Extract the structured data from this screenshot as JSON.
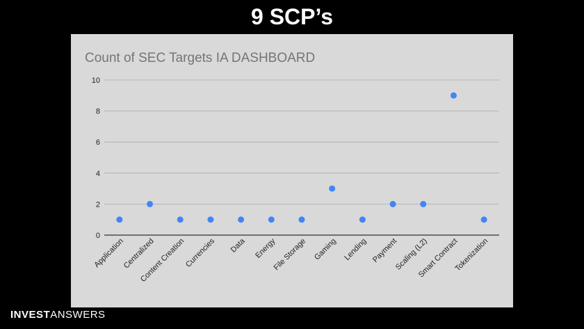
{
  "slide": {
    "title": "9 SCP’s"
  },
  "brand": {
    "part1": "INVEST",
    "part2": "ANSWERS"
  },
  "chart_data": {
    "type": "scatter",
    "title": "Count of SEC Targets IA DASHBOARD",
    "categories": [
      "Application",
      "Centralized",
      "Content Creation",
      "Currencies",
      "Data",
      "Energy",
      "File Storage",
      "Gaming",
      "Lending",
      "Payment",
      "Scaling (L2)",
      "Smart Contract",
      "Tokenization"
    ],
    "values": [
      1,
      2,
      1,
      1,
      1,
      1,
      1,
      3,
      1,
      2,
      2,
      9,
      1
    ],
    "ylim": [
      0,
      10
    ],
    "yticks": [
      0,
      2,
      4,
      6,
      8,
      10
    ],
    "grid": true,
    "point_color": "#4285f4",
    "xlabel": "",
    "ylabel": ""
  }
}
